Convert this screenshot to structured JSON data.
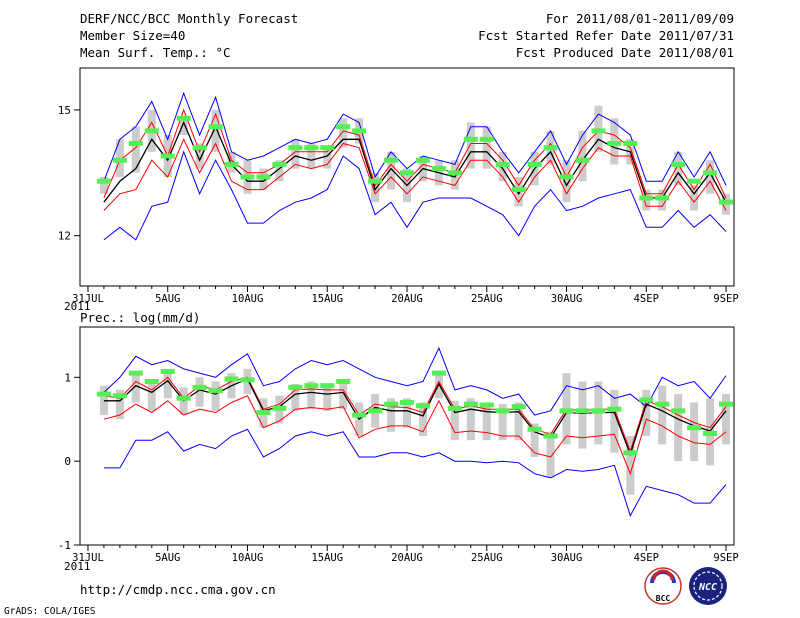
{
  "header": {
    "title": "DERF/NCC/BCC Monthly Forecast",
    "member_size": "Member Size=40",
    "var1_label": "Mean Surf. Temp.: °C",
    "period": "For 2011/08/01-2011/09/09",
    "started": "Fcst Started Refer Date 2011/07/31",
    "produced": "Fcst Produced Date 2011/08/01"
  },
  "footer": {
    "url": "http://cmdp.ncc.cma.gov.cn",
    "grads": "GrADS: COLA/IGES",
    "bcc_logo_text": "BCC",
    "ncc_logo_text": "NCC"
  },
  "x_axis": {
    "tick_labels": [
      "31JUL",
      "5AUG",
      "10AUG",
      "15AUG",
      "20AUG",
      "25AUG",
      "30AUG",
      "4SEP",
      "9SEP"
    ],
    "tick_days": [
      0,
      5,
      10,
      15,
      20,
      25,
      30,
      35,
      40
    ],
    "year_label": "2011",
    "range": [
      -0.5,
      40.5
    ]
  },
  "colors": {
    "upper": "#0000ff",
    "lower": "#0000ff",
    "high": "#ff0000",
    "low": "#ff0000",
    "mean": "#000000",
    "box": "#cccccc",
    "obs": "#55ee55"
  },
  "chart_data": [
    {
      "type": "line",
      "title": "Mean Surf. Temp.: °C",
      "ylim": [
        10.8,
        16.0
      ],
      "yticks": [
        12,
        15
      ],
      "ytick_labels": [
        "12",
        "15"
      ],
      "x": [
        1,
        2,
        3,
        4,
        5,
        6,
        7,
        8,
        9,
        10,
        11,
        12,
        13,
        14,
        15,
        16,
        17,
        18,
        19,
        20,
        21,
        22,
        23,
        24,
        25,
        26,
        27,
        28,
        29,
        30,
        31,
        32,
        33,
        34,
        35,
        36,
        37,
        38,
        39,
        40
      ],
      "series": [
        {
          "name": "upper",
          "values": [
            13.3,
            14.3,
            14.6,
            15.2,
            14.3,
            15.4,
            14.4,
            15.3,
            14.0,
            13.8,
            13.9,
            14.1,
            14.3,
            14.2,
            14.3,
            14.9,
            14.7,
            13.4,
            14.0,
            13.6,
            13.9,
            13.8,
            13.7,
            14.6,
            14.6,
            14.0,
            13.5,
            14.0,
            14.5,
            13.7,
            14.4,
            14.9,
            14.7,
            14.4,
            13.3,
            13.3,
            14.0,
            13.4,
            14.0,
            13.2
          ]
        },
        {
          "name": "high",
          "values": [
            12.9,
            13.8,
            14.1,
            14.7,
            13.9,
            15.0,
            14.0,
            14.9,
            13.8,
            13.5,
            13.5,
            13.7,
            14.0,
            14.0,
            14.0,
            14.5,
            14.4,
            13.2,
            13.7,
            13.3,
            13.7,
            13.6,
            13.5,
            14.2,
            14.2,
            13.8,
            13.2,
            13.8,
            14.2,
            13.4,
            14.1,
            14.5,
            14.4,
            14.1,
            13.0,
            13.0,
            13.7,
            13.1,
            13.7,
            12.9
          ]
        },
        {
          "name": "mean",
          "values": [
            12.8,
            13.3,
            13.6,
            14.3,
            13.8,
            14.7,
            13.8,
            14.6,
            13.7,
            13.3,
            13.3,
            13.6,
            13.9,
            13.8,
            13.9,
            14.3,
            14.3,
            13.1,
            13.6,
            13.2,
            13.6,
            13.5,
            13.4,
            14.0,
            14.0,
            13.6,
            13.0,
            13.6,
            14.0,
            13.2,
            13.8,
            14.3,
            14.1,
            14.0,
            12.9,
            12.9,
            13.5,
            13.0,
            13.5,
            12.8
          ]
        },
        {
          "name": "low",
          "values": [
            12.6,
            13.0,
            13.1,
            13.8,
            13.4,
            14.3,
            13.5,
            14.2,
            13.3,
            13.1,
            13.1,
            13.4,
            13.7,
            13.6,
            13.7,
            14.2,
            14.1,
            13.0,
            13.4,
            13.0,
            13.4,
            13.3,
            13.2,
            13.8,
            13.8,
            13.4,
            12.8,
            13.4,
            13.8,
            13.0,
            13.6,
            14.1,
            13.9,
            13.9,
            12.7,
            12.7,
            13.3,
            12.8,
            13.3,
            12.6
          ]
        },
        {
          "name": "lower",
          "values": [
            11.9,
            12.2,
            11.9,
            12.7,
            12.8,
            14.0,
            13.0,
            13.8,
            13.1,
            12.3,
            12.3,
            12.6,
            12.8,
            12.9,
            13.1,
            13.9,
            13.6,
            12.5,
            12.8,
            12.2,
            12.8,
            12.9,
            12.9,
            12.9,
            12.7,
            12.5,
            12.0,
            12.7,
            13.1,
            12.6,
            12.7,
            12.9,
            13.0,
            13.1,
            12.2,
            12.2,
            12.6,
            12.2,
            12.5,
            12.1
          ]
        }
      ],
      "boxes": [
        [
          13.0,
          13.4
        ],
        [
          13.4,
          14.3
        ],
        [
          13.5,
          14.6
        ],
        [
          14.0,
          15.0
        ],
        [
          13.4,
          14.4
        ],
        [
          14.4,
          14.8
        ],
        [
          13.6,
          14.2
        ],
        [
          14.0,
          15.0
        ],
        [
          13.5,
          14.0
        ],
        [
          13.0,
          13.8
        ],
        [
          13.1,
          13.6
        ],
        [
          13.3,
          13.8
        ],
        [
          13.6,
          14.3
        ],
        [
          13.6,
          14.2
        ],
        [
          13.6,
          14.1
        ],
        [
          14.1,
          14.8
        ],
        [
          14.2,
          14.8
        ],
        [
          12.8,
          13.5
        ],
        [
          13.1,
          14.0
        ],
        [
          12.8,
          13.6
        ],
        [
          13.3,
          13.9
        ],
        [
          13.2,
          13.8
        ],
        [
          13.1,
          13.8
        ],
        [
          13.6,
          14.7
        ],
        [
          13.6,
          14.6
        ],
        [
          13.3,
          14.0
        ],
        [
          12.7,
          13.4
        ],
        [
          13.2,
          14.0
        ],
        [
          13.7,
          14.5
        ],
        [
          12.8,
          13.8
        ],
        [
          13.3,
          14.5
        ],
        [
          14.0,
          15.1
        ],
        [
          13.7,
          14.8
        ],
        [
          13.7,
          14.3
        ],
        [
          12.6,
          13.1
        ],
        [
          12.6,
          13.1
        ],
        [
          13.2,
          14.0
        ],
        [
          12.6,
          13.2
        ],
        [
          13.0,
          13.8
        ],
        [
          12.5,
          13.0
        ]
      ],
      "obs": [
        13.3,
        13.8,
        14.2,
        14.5,
        13.9,
        14.8,
        14.1,
        14.6,
        13.7,
        13.4,
        13.4,
        13.7,
        14.1,
        14.1,
        14.1,
        14.6,
        14.5,
        13.3,
        13.8,
        13.5,
        13.8,
        13.6,
        13.5,
        14.3,
        14.3,
        13.7,
        13.1,
        13.7,
        14.1,
        13.4,
        13.8,
        14.5,
        14.2,
        14.2,
        12.9,
        12.9,
        13.7,
        13.3,
        13.5,
        12.8
      ]
    },
    {
      "type": "line",
      "title": "Prec.: log(mm/d)",
      "ylim": [
        -1.0,
        1.6
      ],
      "yticks": [
        -1,
        0,
        1
      ],
      "ytick_labels": [
        "-1",
        "0",
        "1"
      ],
      "x": [
        1,
        2,
        3,
        4,
        5,
        6,
        7,
        8,
        9,
        10,
        11,
        12,
        13,
        14,
        15,
        16,
        17,
        18,
        19,
        20,
        21,
        22,
        23,
        24,
        25,
        26,
        27,
        28,
        29,
        30,
        31,
        32,
        33,
        34,
        35,
        36,
        37,
        38,
        39,
        40
      ],
      "series": [
        {
          "name": "upper",
          "values": [
            0.82,
            1.0,
            1.25,
            1.15,
            1.2,
            1.1,
            1.05,
            1.0,
            1.15,
            1.28,
            0.9,
            0.95,
            1.1,
            1.2,
            1.15,
            1.2,
            1.1,
            1.0,
            0.95,
            0.9,
            0.95,
            1.35,
            0.85,
            0.9,
            0.85,
            0.75,
            0.8,
            0.55,
            0.6,
            0.9,
            0.85,
            0.9,
            0.75,
            0.8,
            0.65,
            1.0,
            0.9,
            0.95,
            0.75,
            1.02
          ]
        },
        {
          "name": "high",
          "values": [
            0.78,
            0.75,
            0.95,
            0.85,
            1.0,
            0.75,
            0.9,
            0.85,
            0.95,
            1.0,
            0.62,
            0.68,
            0.85,
            0.86,
            0.85,
            0.85,
            0.55,
            0.68,
            0.65,
            0.64,
            0.58,
            0.95,
            0.62,
            0.66,
            0.62,
            0.62,
            0.62,
            0.38,
            0.32,
            0.62,
            0.6,
            0.62,
            0.62,
            0.12,
            0.72,
            0.65,
            0.55,
            0.46,
            0.4,
            0.65
          ]
        },
        {
          "name": "mean",
          "values": [
            0.72,
            0.72,
            0.9,
            0.82,
            0.96,
            0.72,
            0.85,
            0.8,
            0.9,
            0.98,
            0.6,
            0.65,
            0.8,
            0.82,
            0.8,
            0.82,
            0.5,
            0.64,
            0.6,
            0.6,
            0.54,
            0.92,
            0.58,
            0.62,
            0.59,
            0.58,
            0.59,
            0.35,
            0.28,
            0.58,
            0.57,
            0.58,
            0.58,
            0.08,
            0.68,
            0.6,
            0.5,
            0.42,
            0.36,
            0.6
          ]
        },
        {
          "name": "low",
          "values": [
            0.5,
            0.55,
            0.68,
            0.58,
            0.72,
            0.55,
            0.62,
            0.58,
            0.7,
            0.78,
            0.4,
            0.48,
            0.62,
            0.64,
            0.62,
            0.65,
            0.28,
            0.38,
            0.42,
            0.42,
            0.35,
            0.72,
            0.34,
            0.36,
            0.34,
            0.3,
            0.3,
            0.1,
            0.05,
            0.3,
            0.28,
            0.3,
            0.32,
            -0.15,
            0.5,
            0.42,
            0.3,
            0.22,
            0.2,
            0.35
          ]
        },
        {
          "name": "lower",
          "values": [
            -0.08,
            -0.08,
            0.25,
            0.25,
            0.35,
            0.12,
            0.2,
            0.15,
            0.3,
            0.38,
            0.05,
            0.15,
            0.3,
            0.35,
            0.3,
            0.35,
            0.05,
            0.05,
            0.1,
            0.1,
            0.05,
            0.1,
            0.0,
            0.0,
            -0.02,
            0.0,
            -0.02,
            -0.15,
            -0.2,
            -0.1,
            -0.12,
            -0.1,
            -0.05,
            -0.65,
            -0.3,
            -0.35,
            -0.4,
            -0.5,
            -0.5,
            -0.28
          ]
        }
      ],
      "boxes": [
        [
          0.55,
          0.9
        ],
        [
          0.5,
          0.85
        ],
        [
          0.7,
          1.05
        ],
        [
          0.6,
          0.95
        ],
        [
          0.75,
          1.1
        ],
        [
          0.55,
          0.88
        ],
        [
          0.65,
          1.0
        ],
        [
          0.6,
          0.95
        ],
        [
          0.75,
          1.05
        ],
        [
          0.8,
          1.1
        ],
        [
          0.4,
          0.75
        ],
        [
          0.45,
          0.78
        ],
        [
          0.6,
          0.92
        ],
        [
          0.62,
          0.95
        ],
        [
          0.6,
          0.92
        ],
        [
          0.62,
          0.95
        ],
        [
          0.3,
          0.7
        ],
        [
          0.4,
          0.8
        ],
        [
          0.35,
          0.75
        ],
        [
          0.4,
          0.75
        ],
        [
          0.3,
          0.7
        ],
        [
          0.75,
          1.05
        ],
        [
          0.25,
          0.72
        ],
        [
          0.25,
          0.75
        ],
        [
          0.25,
          0.7
        ],
        [
          0.25,
          0.68
        ],
        [
          0.25,
          0.7
        ],
        [
          0.05,
          0.45
        ],
        [
          -0.2,
          0.35
        ],
        [
          0.2,
          1.05
        ],
        [
          0.15,
          0.95
        ],
        [
          0.2,
          0.95
        ],
        [
          0.1,
          0.85
        ],
        [
          -0.4,
          0.3
        ],
        [
          0.3,
          0.85
        ],
        [
          0.2,
          0.9
        ],
        [
          0.0,
          0.8
        ],
        [
          0.0,
          0.7
        ],
        [
          -0.05,
          0.75
        ],
        [
          0.2,
          0.8
        ]
      ],
      "obs": [
        0.8,
        0.78,
        1.05,
        0.95,
        1.07,
        0.75,
        0.88,
        0.84,
        0.98,
        0.97,
        0.58,
        0.63,
        0.88,
        0.9,
        0.9,
        0.95,
        0.55,
        0.6,
        0.68,
        0.7,
        0.66,
        1.05,
        0.63,
        0.68,
        0.67,
        0.6,
        0.65,
        0.38,
        0.3,
        0.6,
        0.6,
        0.6,
        0.62,
        0.1,
        0.73,
        0.68,
        0.6,
        0.4,
        0.33,
        0.68
      ]
    }
  ]
}
